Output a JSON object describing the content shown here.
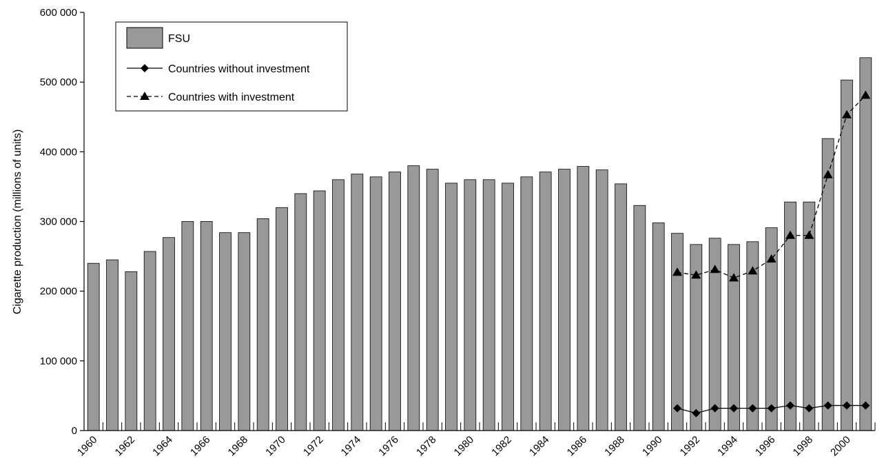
{
  "chart_data": {
    "type": "bar",
    "title": "",
    "xlabel": "",
    "ylabel": "Cigarette production (millions of units)",
    "ylim": [
      0,
      600000
    ],
    "yticks": [
      0,
      100000,
      200000,
      300000,
      400000,
      500000,
      600000
    ],
    "ytick_labels": [
      "0",
      "100 000",
      "200 000",
      "300 000",
      "400 000",
      "500 000",
      "600 000"
    ],
    "xtick_labels": [
      "1960",
      "1962",
      "1964",
      "1966",
      "1968",
      "1970",
      "1972",
      "1974",
      "1976",
      "1978",
      "1980",
      "1982",
      "1984",
      "1986",
      "1988",
      "1990",
      "1992",
      "1994",
      "1996",
      "1998",
      "2000"
    ],
    "legend_position": "top-left",
    "grid": false,
    "categories": [
      1960,
      1961,
      1962,
      1963,
      1964,
      1965,
      1966,
      1967,
      1968,
      1969,
      1970,
      1971,
      1972,
      1973,
      1974,
      1975,
      1976,
      1977,
      1978,
      1979,
      1980,
      1981,
      1982,
      1983,
      1984,
      1985,
      1986,
      1987,
      1988,
      1989,
      1990,
      1991,
      1992,
      1993,
      1994,
      1995,
      1996,
      1997,
      1998,
      1999,
      2000,
      2001
    ],
    "series": [
      {
        "name": "FSU",
        "kind": "bar",
        "color": "#999999",
        "values": [
          240000,
          245000,
          228000,
          257000,
          277000,
          300000,
          300000,
          284000,
          284000,
          304000,
          320000,
          340000,
          344000,
          360000,
          368000,
          364000,
          371000,
          380000,
          375000,
          355000,
          360000,
          360000,
          355000,
          364000,
          371000,
          375000,
          379000,
          374000,
          354000,
          323000,
          298000,
          283000,
          267000,
          276000,
          267000,
          271000,
          291000,
          328000,
          328000,
          419000,
          503000,
          535000
        ]
      },
      {
        "name": "Countries without investment",
        "kind": "line",
        "marker": "diamond",
        "line_style": "solid",
        "color": "#000000",
        "x": [
          1991,
          1992,
          1993,
          1994,
          1995,
          1996,
          1997,
          1998,
          1999,
          2000,
          2001
        ],
        "values": [
          32000,
          25000,
          32000,
          32000,
          32000,
          32000,
          36000,
          32000,
          36000,
          36000,
          36000
        ]
      },
      {
        "name": "Countries with investment",
        "kind": "line",
        "marker": "triangle",
        "line_style": "dashed",
        "color": "#000000",
        "x": [
          1991,
          1992,
          1993,
          1994,
          1995,
          1996,
          1997,
          1998,
          1999,
          2000,
          2001
        ],
        "values": [
          227000,
          223000,
          231000,
          219000,
          229000,
          246000,
          280000,
          280000,
          367000,
          453000,
          481000
        ]
      }
    ]
  }
}
